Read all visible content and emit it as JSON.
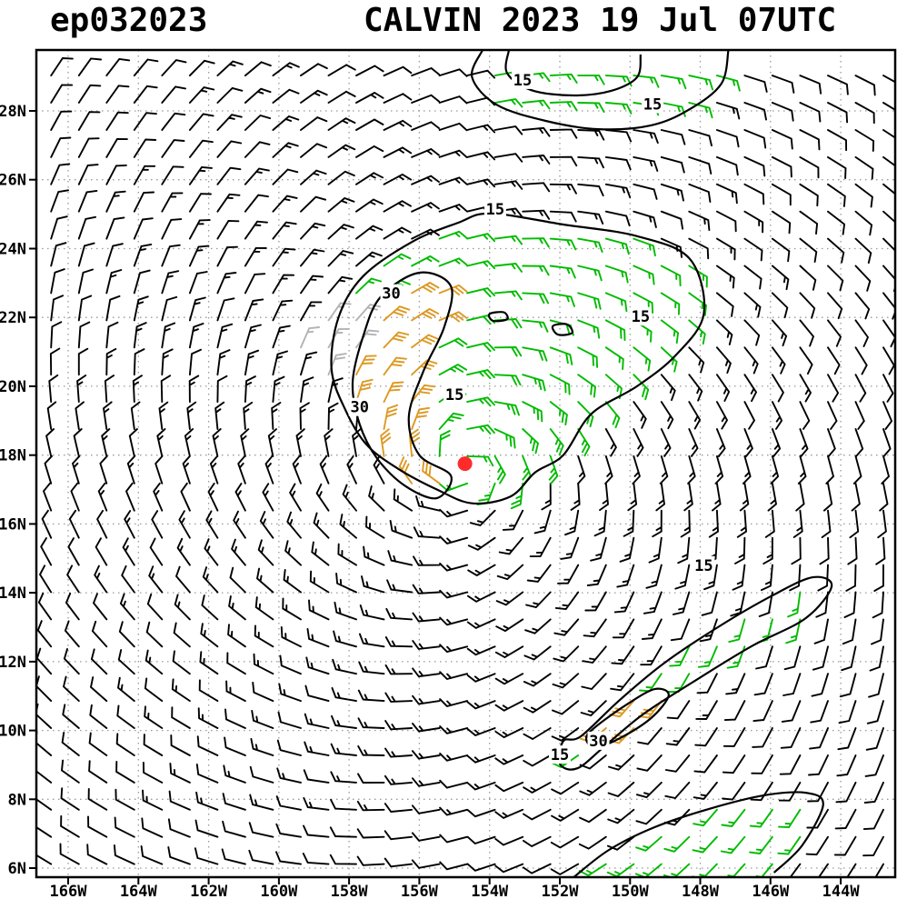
{
  "header": {
    "storm_id": "ep032023",
    "title": "CALVIN 2023 19 Jul 07UTC"
  },
  "chart_data": {
    "type": "scatter",
    "subtype": "wind-barb-map",
    "title": "CALVIN 2023 19 Jul 07UTC",
    "storm_id": "ep032023",
    "lon_range": [
      -166.906,
      -142.45
    ],
    "lat_range": [
      5.737,
      29.77
    ],
    "x_ticks": [
      {
        "label": "166W",
        "lon": -166
      },
      {
        "label": "164W",
        "lon": -164
      },
      {
        "label": "162W",
        "lon": -162
      },
      {
        "label": "160W",
        "lon": -160
      },
      {
        "label": "158W",
        "lon": -158
      },
      {
        "label": "156W",
        "lon": -156
      },
      {
        "label": "154W",
        "lon": -154
      },
      {
        "label": "152W",
        "lon": -152
      },
      {
        "label": "150W",
        "lon": -150
      },
      {
        "label": "148W",
        "lon": -148
      },
      {
        "label": "146W",
        "lon": -146
      },
      {
        "label": "144W",
        "lon": -144
      }
    ],
    "y_ticks": [
      {
        "label": "28N",
        "lat": 28
      },
      {
        "label": "26N",
        "lat": 26
      },
      {
        "label": "24N",
        "lat": 24
      },
      {
        "label": "22N",
        "lat": 22
      },
      {
        "label": "20N",
        "lat": 20
      },
      {
        "label": "18N",
        "lat": 18
      },
      {
        "label": "16N",
        "lat": 16
      },
      {
        "label": "14N",
        "lat": 14
      },
      {
        "label": "12N",
        "lat": 12
      },
      {
        "label": "10N",
        "lat": 10
      },
      {
        "label": "8N",
        "lat": 8
      },
      {
        "label": "6N",
        "lat": 6
      }
    ],
    "contour_levels": [
      15,
      30
    ],
    "storm_center": {
      "lat": 17.75,
      "lon": -154.7
    },
    "wind_model": {
      "center_lat": 17.75,
      "center_lon": -154.7,
      "vmax_kt": 35,
      "rmax_deg": 1.2,
      "inflow": 0.25,
      "gray_ellipse": {
        "lon": -157.9,
        "lat": 21.0,
        "a": 1.7,
        "b": 1.2
      }
    },
    "barb_grid": {
      "step_deg": 0.79
    },
    "colors": {
      "barb_black": "#000000",
      "barb_green": "#00bb00",
      "barb_orange": "#dd9922",
      "barb_gray": "#b3b3b3",
      "contour": "#000000",
      "grid": "#999999",
      "storm_marker": "#ff2a2a",
      "axis": "#000000"
    },
    "contours": {
      "level15": [
        {
          "name": "main-15",
          "closed": true,
          "fillable": true,
          "points": [
            [
              -153.97,
              25.02
            ],
            [
              -151.9,
              24.7
            ],
            [
              -149.8,
              24.36
            ],
            [
              -148.3,
              23.7
            ],
            [
              -147.9,
              22.1
            ],
            [
              -148.7,
              20.9
            ],
            [
              -149.8,
              20.0
            ],
            [
              -151.1,
              19.2
            ],
            [
              -151.9,
              18.0
            ],
            [
              -152.7,
              17.5
            ],
            [
              -153.4,
              16.8
            ],
            [
              -154.5,
              16.6
            ],
            [
              -155.5,
              17.0
            ],
            [
              -156.6,
              17.6
            ],
            [
              -157.5,
              18.3
            ],
            [
              -158.1,
              19.3
            ],
            [
              -158.5,
              20.5
            ],
            [
              -158.3,
              22.0
            ],
            [
              -157.6,
              23.2
            ],
            [
              -156.2,
              24.2
            ],
            [
              -154.9,
              24.75
            ]
          ]
        },
        {
          "name": "top-15-outer",
          "closed": false,
          "fillable": true,
          "points": [
            [
              -154.2,
              29.77
            ],
            [
              -154.5,
              28.98
            ],
            [
              -153.8,
              28.18
            ],
            [
              -152.4,
              27.71
            ],
            [
              -150.9,
              27.47
            ],
            [
              -149.4,
              27.58
            ],
            [
              -148.3,
              28.05
            ],
            [
              -147.4,
              28.79
            ],
            [
              -147.2,
              29.77
            ]
          ]
        },
        {
          "name": "top-15-inner",
          "closed": false,
          "fillable": false,
          "points": [
            [
              -153.45,
              29.77
            ],
            [
              -153.5,
              29.1
            ],
            [
              -152.8,
              28.6
            ],
            [
              -151.6,
              28.45
            ],
            [
              -150.55,
              28.58
            ],
            [
              -149.8,
              28.98
            ],
            [
              -149.7,
              29.64
            ]
          ]
        },
        {
          "name": "se-15-band",
          "closed": true,
          "fillable": true,
          "points": [
            [
              -151.4,
              9.83
            ],
            [
              -150.3,
              10.88
            ],
            [
              -149.05,
              11.94
            ],
            [
              -147.5,
              13.0
            ],
            [
              -145.95,
              13.92
            ],
            [
              -144.8,
              14.45
            ],
            [
              -144.26,
              14.19
            ],
            [
              -145.0,
              13.26
            ],
            [
              -146.5,
              12.47
            ],
            [
              -148.0,
              11.54
            ],
            [
              -149.6,
              10.49
            ],
            [
              -150.7,
              9.56
            ],
            [
              -151.5,
              8.9
            ],
            [
              -152.0,
              9.03
            ],
            [
              -151.9,
              9.69
            ]
          ]
        },
        {
          "name": "bottom-15-band",
          "closed": false,
          "fillable": true,
          "points": [
            [
              -151.6,
              5.74
            ],
            [
              -150.6,
              6.53
            ],
            [
              -149.3,
              7.19
            ],
            [
              -147.75,
              7.72
            ],
            [
              -146.2,
              8.11
            ],
            [
              -145.0,
              8.19
            ],
            [
              -144.5,
              7.85
            ],
            [
              -145.1,
              6.66
            ],
            [
              -145.9,
              5.87
            ]
          ]
        },
        {
          "name": "inner-pocket-a",
          "closed": true,
          "fillable": false,
          "points": [
            [
              -154.0,
              22.1
            ],
            [
              -153.6,
              22.15
            ],
            [
              -153.5,
              21.95
            ],
            [
              -153.9,
              21.9
            ]
          ]
        },
        {
          "name": "inner-pocket-b",
          "closed": true,
          "fillable": false,
          "points": [
            [
              -152.2,
              21.75
            ],
            [
              -151.8,
              21.8
            ],
            [
              -151.65,
              21.55
            ],
            [
              -152.05,
              21.5
            ]
          ]
        }
      ],
      "level30": [
        {
          "name": "main-30",
          "closed": true,
          "points": [
            [
              -156.0,
              23.3
            ],
            [
              -155.1,
              22.9
            ],
            [
              -155.3,
              21.7
            ],
            [
              -155.9,
              20.4
            ],
            [
              -156.3,
              19.1
            ],
            [
              -156.0,
              18.0
            ],
            [
              -155.1,
              17.4
            ],
            [
              -155.5,
              16.75
            ],
            [
              -156.4,
              17.1
            ],
            [
              -157.2,
              17.9
            ],
            [
              -157.7,
              18.9
            ],
            [
              -157.9,
              20.1
            ],
            [
              -157.6,
              21.45
            ],
            [
              -157.1,
              22.6
            ]
          ]
        },
        {
          "name": "se-30",
          "closed": true,
          "points": [
            [
              -151.0,
              10.09
            ],
            [
              -150.1,
              10.75
            ],
            [
              -149.3,
              11.2
            ],
            [
              -148.9,
              11.02
            ],
            [
              -149.4,
              10.36
            ],
            [
              -150.3,
              9.77
            ],
            [
              -151.0,
              9.51
            ],
            [
              -151.25,
              9.77
            ]
          ]
        }
      ]
    },
    "contour_labels": [
      {
        "text": "15",
        "lon": -153.06,
        "lat": 28.9
      },
      {
        "text": "15",
        "lon": -149.36,
        "lat": 28.2
      },
      {
        "text": "15",
        "lon": -153.84,
        "lat": 25.15
      },
      {
        "text": "30",
        "lon": -156.8,
        "lat": 22.7
      },
      {
        "text": "15",
        "lon": -149.7,
        "lat": 22.03
      },
      {
        "text": "30",
        "lon": -157.7,
        "lat": 19.4
      },
      {
        "text": "15",
        "lon": -155.0,
        "lat": 19.76
      },
      {
        "text": "15",
        "lon": -147.9,
        "lat": 14.8
      },
      {
        "text": "30",
        "lon": -150.9,
        "lat": 9.7
      },
      {
        "text": "15",
        "lon": -152.0,
        "lat": 9.3
      }
    ]
  }
}
